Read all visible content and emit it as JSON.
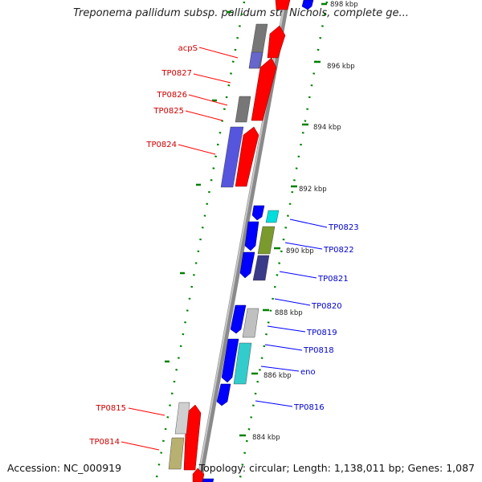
{
  "title": "Treponema pallidum subsp. pallidum str. Nichols, complete ge...",
  "footer": {
    "accession": "Accession: NC_000919",
    "summary": "Topology: circular; Length: 1,138,011 bp; Genes: 1,087"
  },
  "colors": {
    "forward_red": "#ff0000",
    "reverse_blue": "#0000ff",
    "label_red": "#cc0000",
    "label_blue": "#0000cc",
    "backbone": "#8a8a8a",
    "ticks": "#008000",
    "gray": "#777777",
    "cyan": "#00cccc",
    "olive": "#6b8e23",
    "navy": "#333399",
    "khaki": "#a8a060"
  },
  "kbp_labels": [
    "898 kbp",
    "896 kbp",
    "894 kbp",
    "892 kbp",
    "890 kbp",
    "888 kbp",
    "886 kbp",
    "884 kbp"
  ],
  "gene_labels_left": [
    "acpS",
    "TP0827",
    "TP0826",
    "TP0825",
    "TP0824",
    "TP0815",
    "TP0814"
  ],
  "gene_labels_right": [
    "TP0823",
    "TP0822",
    "TP0821",
    "TP0820",
    "TP0819",
    "TP0818",
    "eno",
    "TP0816"
  ]
}
